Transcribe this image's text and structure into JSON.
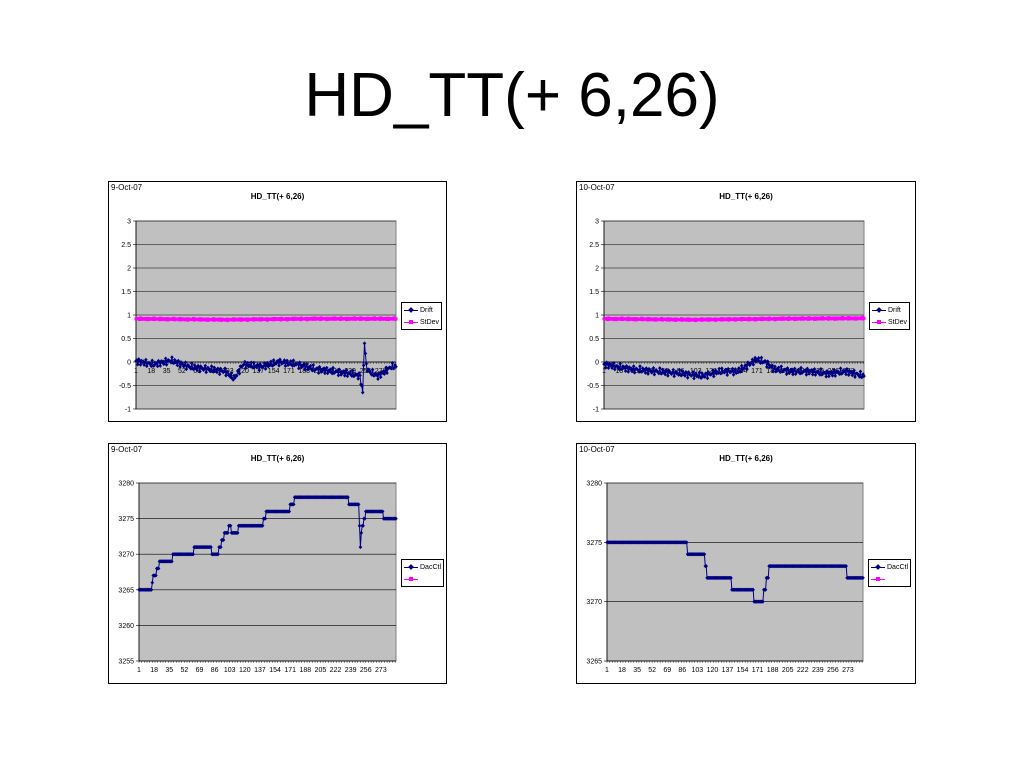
{
  "slide": {
    "title": "HD_TT(+ 6,26)"
  },
  "chart_data": [
    {
      "type": "line",
      "date": "9-Oct-07",
      "title": "HD_TT(+ 6,26)",
      "ylim": [
        -1,
        3
      ],
      "yticks": [
        -1,
        -0.5,
        0,
        0.5,
        1,
        1.5,
        2,
        2.5,
        3
      ],
      "xtick_labels": [
        "1",
        "18",
        "35",
        "52",
        "69",
        "86",
        "103",
        "120",
        "137",
        "154",
        "171",
        "188",
        "205",
        "222",
        "239",
        "256",
        "273"
      ],
      "n_points": 290,
      "grid": true,
      "legend_position": "right",
      "series": [
        {
          "name": "Drift",
          "color": "#000080",
          "marker": "diamond",
          "x": [
            1,
            20,
            40,
            60,
            80,
            100,
            110,
            120,
            140,
            160,
            180,
            200,
            220,
            240,
            250,
            253,
            255,
            257,
            260,
            270,
            285,
            290
          ],
          "values": [
            0.02,
            -0.05,
            0.03,
            -0.1,
            -0.15,
            -0.2,
            -0.35,
            -0.05,
            -0.1,
            0.0,
            -0.05,
            -0.15,
            -0.2,
            -0.25,
            -0.3,
            -0.65,
            0.45,
            -0.1,
            -0.2,
            -0.3,
            -0.1,
            -0.1
          ]
        },
        {
          "name": "StDev",
          "color": "#ff00ff",
          "marker": "square",
          "x": [
            1,
            100,
            200,
            290
          ],
          "values": [
            0.92,
            0.9,
            0.92,
            0.92
          ]
        }
      ]
    },
    {
      "type": "line",
      "date": "10-Oct-07",
      "title": "HD_TT(+ 6,26)",
      "ylim": [
        -1,
        3
      ],
      "yticks": [
        -1,
        -0.5,
        0,
        0.5,
        1,
        1.5,
        2,
        2.5,
        3
      ],
      "xtick_labels": [
        "1",
        "18",
        "35",
        "52",
        "69",
        "86",
        "103",
        "120",
        "137",
        "154",
        "171",
        "188",
        "205",
        "222",
        "239",
        "256",
        "273"
      ],
      "n_points": 290,
      "grid": true,
      "legend_position": "right",
      "series": [
        {
          "name": "Drift",
          "color": "#000080",
          "marker": "diamond",
          "x": [
            1,
            30,
            60,
            90,
            110,
            130,
            150,
            170,
            180,
            190,
            210,
            230,
            250,
            270,
            290
          ],
          "values": [
            -0.05,
            -0.15,
            -0.2,
            -0.25,
            -0.3,
            -0.2,
            -0.2,
            0.05,
            0.0,
            -0.15,
            -0.2,
            -0.2,
            -0.25,
            -0.2,
            -0.3
          ]
        },
        {
          "name": "StDev",
          "color": "#ff00ff",
          "marker": "square",
          "x": [
            1,
            100,
            200,
            290
          ],
          "values": [
            0.92,
            0.9,
            0.92,
            0.93
          ]
        }
      ]
    },
    {
      "type": "line",
      "date": "9-Oct-07",
      "title": "HD_TT(+ 6,26)",
      "ylim": [
        3255,
        3280
      ],
      "yticks": [
        3255,
        3260,
        3265,
        3270,
        3275,
        3280
      ],
      "xtick_labels": [
        "1",
        "18",
        "35",
        "52",
        "69",
        "86",
        "103",
        "120",
        "137",
        "154",
        "171",
        "188",
        "205",
        "222",
        "239",
        "256",
        "273"
      ],
      "n_points": 290,
      "grid": true,
      "legend_position": "right",
      "series": [
        {
          "name": "DacCtl",
          "color": "#000080",
          "marker": "diamond",
          "x": [
            1,
            15,
            16,
            18,
            20,
            22,
            25,
            30,
            38,
            40,
            55,
            60,
            65,
            70,
            80,
            85,
            90,
            92,
            95,
            98,
            100,
            103,
            105,
            110,
            115,
            120,
            125,
            140,
            142,
            145,
            170,
            172,
            180,
            210,
            235,
            237,
            240,
            248,
            250,
            252,
            255,
            257,
            260,
            275,
            276,
            280,
            290
          ],
          "values": [
            3265,
            3265,
            3266,
            3267,
            3267,
            3268,
            3269,
            3269,
            3269,
            3270,
            3270,
            3270,
            3271,
            3271,
            3271,
            3270,
            3270,
            3271,
            3272,
            3273,
            3273,
            3274,
            3273,
            3273,
            3274,
            3274,
            3274,
            3274,
            3275,
            3276,
            3276,
            3277,
            3278,
            3278,
            3278,
            3277,
            3277,
            3277,
            3271,
            3274,
            3275,
            3276,
            3276,
            3276,
            3275,
            3275,
            3275
          ]
        },
        {
          "name": "",
          "color": "#ff00ff",
          "marker": "square",
          "x": [],
          "values": []
        }
      ]
    },
    {
      "type": "line",
      "date": "10-Oct-07",
      "title": "HD_TT(+ 6,26)",
      "ylim": [
        3265,
        3280
      ],
      "yticks": [
        3265,
        3270,
        3275,
        3280
      ],
      "xtick_labels": [
        "1",
        "18",
        "35",
        "52",
        "69",
        "86",
        "103",
        "120",
        "137",
        "154",
        "171",
        "188",
        "205",
        "222",
        "239",
        "256",
        "273"
      ],
      "n_points": 290,
      "grid": true,
      "legend_position": "right",
      "series": [
        {
          "name": "DacCtl",
          "color": "#000080",
          "marker": "diamond",
          "x": [
            1,
            90,
            92,
            110,
            112,
            114,
            140,
            142,
            165,
            167,
            177,
            179,
            182,
            185,
            270,
            272,
            290
          ],
          "values": [
            3275,
            3275,
            3274,
            3274,
            3273,
            3272,
            3272,
            3271,
            3271,
            3270,
            3270,
            3271,
            3272,
            3273,
            3273,
            3272,
            3272
          ]
        },
        {
          "name": "",
          "color": "#ff00ff",
          "marker": "square",
          "x": [],
          "values": []
        }
      ]
    }
  ]
}
